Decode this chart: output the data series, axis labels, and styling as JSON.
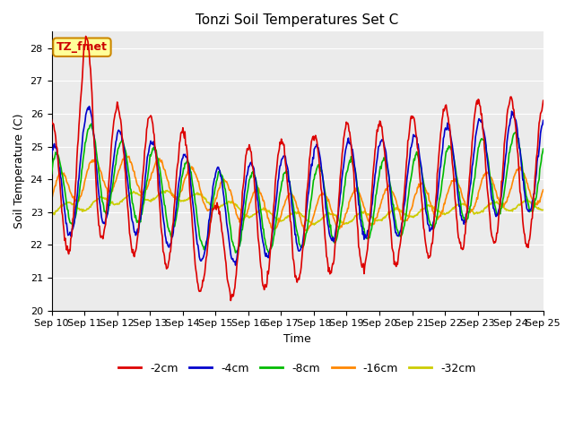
{
  "title": "Tonzi Soil Temperatures Set C",
  "xlabel": "Time",
  "ylabel": "Soil Temperature (C)",
  "ylim": [
    20.0,
    28.5
  ],
  "yticks": [
    20.0,
    21.0,
    22.0,
    23.0,
    24.0,
    25.0,
    26.0,
    27.0,
    28.0
  ],
  "xtick_labels": [
    "Sep 10",
    "Sep 11",
    "Sep 12",
    "Sep 13",
    "Sep 14",
    "Sep 15",
    "Sep 16",
    "Sep 17",
    "Sep 18",
    "Sep 19",
    "Sep 20",
    "Sep 21",
    "Sep 22",
    "Sep 23",
    "Sep 24",
    "Sep 25"
  ],
  "legend_labels": [
    "-2cm",
    "-4cm",
    "-8cm",
    "-16cm",
    "-32cm"
  ],
  "legend_colors": [
    "#dd0000",
    "#0000cc",
    "#00bb00",
    "#ff8800",
    "#cccc00"
  ],
  "annotation_text": "TZ_fmet",
  "annotation_bg": "#ffff99",
  "annotation_border": "#cc8800",
  "plot_bg": "#ebebeb",
  "grid_color": "#ffffff",
  "n_points": 720
}
